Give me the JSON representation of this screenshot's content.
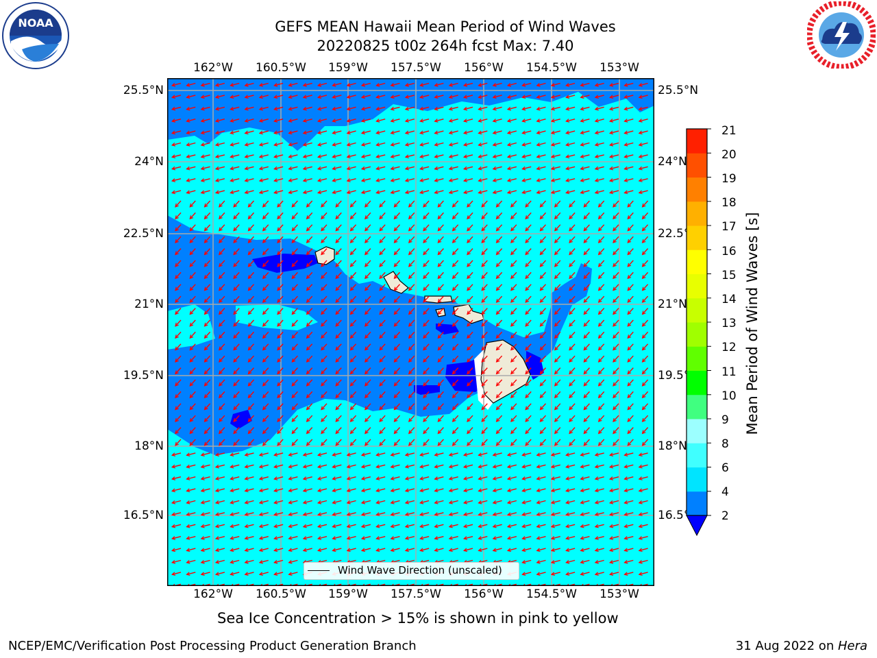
{
  "header": {
    "title_line1": "GEFS MEAN Hawaii Mean Period of Wind Waves",
    "title_line2": "20220825 t00z 264h fcst   Max: 7.40"
  },
  "logos": {
    "left": {
      "text": "NOAA",
      "ring_top": "NATIONAL OCEANIC AND ATMOSPHERIC ADMINISTRATION",
      "ring_bottom": "U.S. DEPARTMENT OF COMMERCE"
    },
    "right": {
      "ring_text": "NATIONAL WEATHER SERVICE"
    }
  },
  "map": {
    "lon_labels": [
      "162°W",
      "160.5°W",
      "159°W",
      "157.5°W",
      "156°W",
      "154.5°W",
      "153°W"
    ],
    "lat_labels": [
      "25.5°N",
      "24°N",
      "22.5°N",
      "21°N",
      "19.5°N",
      "18°N",
      "16.5°N"
    ],
    "legend": "Wind Wave Direction (unscaled)",
    "colors": {
      "ocean_light": "#00ffff",
      "ocean_mid": "#0080ff",
      "ocean_dark": "#0000ff",
      "land": "#efebd8",
      "arrow": "#ff0000",
      "grid": "#aaaaaa"
    }
  },
  "colorbar": {
    "label": "Mean Period of Wind Waves [s]",
    "ticks": [
      "2",
      "4",
      "6",
      "8",
      "9",
      "10",
      "11",
      "12",
      "13",
      "14",
      "15",
      "16",
      "17",
      "18",
      "19",
      "20",
      "21"
    ],
    "colors": [
      "#0080ff",
      "#00e4ff",
      "#40ffff",
      "#9cffff",
      "#40ff80",
      "#00ff00",
      "#60ff00",
      "#a0ff00",
      "#c8ff00",
      "#e8ff00",
      "#ffff00",
      "#ffd000",
      "#ffb000",
      "#ff8000",
      "#ff5000",
      "#ff2000"
    ],
    "extend_color": "#0000ff"
  },
  "notes": {
    "ice": "Sea Ice Concentration > 15% is shown in pink to yellow"
  },
  "footer": {
    "left": "NCEP/EMC/Verification Post Processing Product Generation Branch",
    "right_prefix": "31 Aug 2022 on ",
    "right_host": "Hera"
  }
}
